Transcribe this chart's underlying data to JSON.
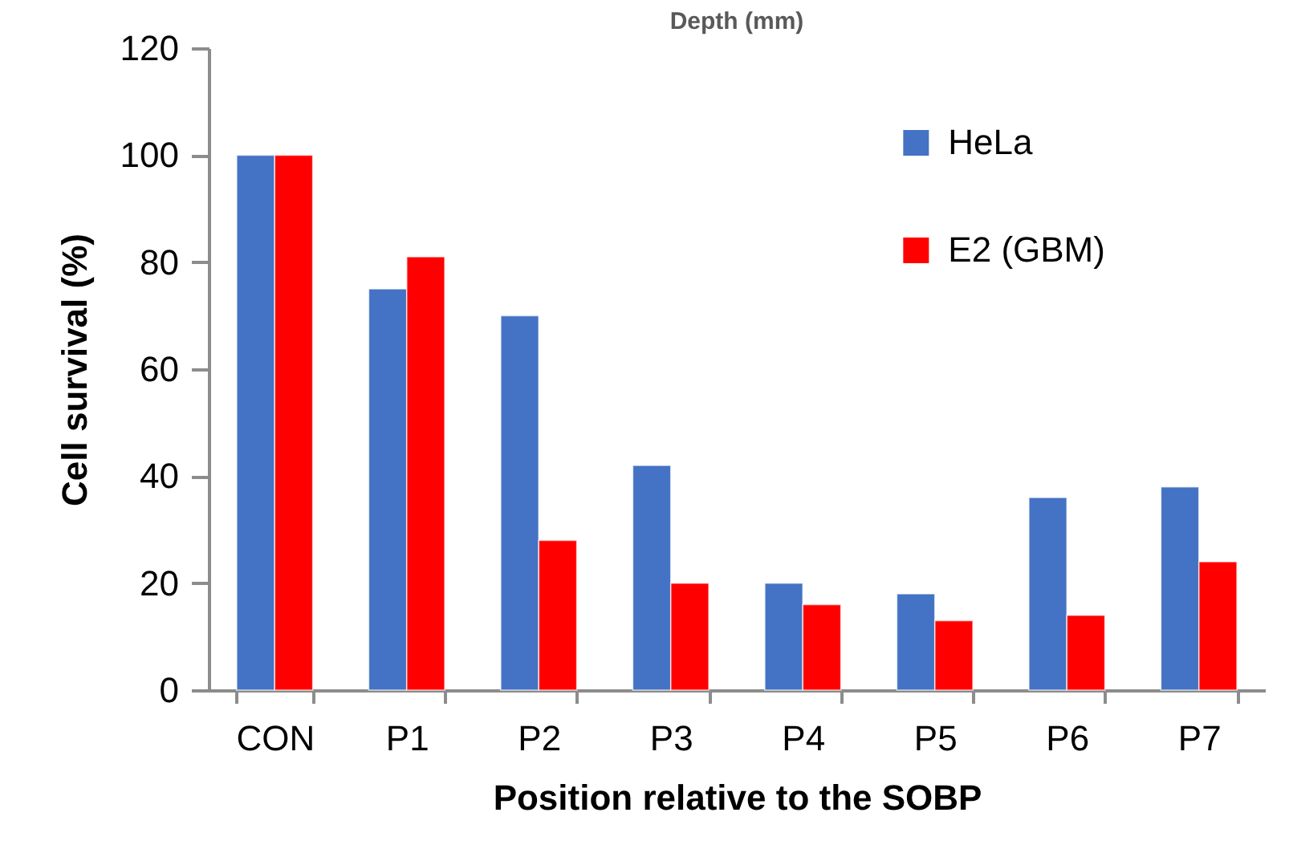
{
  "chart_data": {
    "type": "bar",
    "title": "Depth (mm)",
    "xlabel": "Position relative to the SOBP",
    "ylabel": "Cell survival (%)",
    "categories": [
      "CON",
      "P1",
      "P2",
      "P3",
      "P4",
      "P5",
      "P6",
      "P7"
    ],
    "series": [
      {
        "name": "HeLa",
        "color": "#4472c4",
        "values": [
          100,
          75,
          70,
          42,
          20,
          18,
          36,
          38
        ]
      },
      {
        "name": "E2 (GBM)",
        "color": "#ff0000",
        "values": [
          100,
          81,
          28,
          20,
          16,
          13,
          14,
          24
        ]
      }
    ],
    "ylim": [
      0,
      120
    ],
    "yticks": [
      0,
      20,
      40,
      60,
      80,
      100,
      120
    ],
    "legend": "top right"
  }
}
